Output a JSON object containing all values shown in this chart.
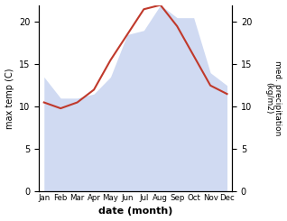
{
  "months": [
    "Jan",
    "Feb",
    "Mar",
    "Apr",
    "May",
    "Jun",
    "Jul",
    "Aug",
    "Sep",
    "Oct",
    "Nov",
    "Dec"
  ],
  "month_indices": [
    0,
    1,
    2,
    3,
    4,
    5,
    6,
    7,
    8,
    9,
    10,
    11
  ],
  "temp_max": [
    10.5,
    9.8,
    10.5,
    12.0,
    15.5,
    18.5,
    21.5,
    22.0,
    19.5,
    16.0,
    12.5,
    11.5
  ],
  "precipitation": [
    13.5,
    11.0,
    11.0,
    11.5,
    13.5,
    18.5,
    19.0,
    22.0,
    20.5,
    20.5,
    14.0,
    12.5
  ],
  "fill_color": "#c8d4f0",
  "fill_alpha": 0.85,
  "line_color": "#c0392b",
  "line_width": 1.5,
  "left_ylabel": "max temp (C)",
  "right_ylabel": "med. precipitation\n(kg/m2)",
  "xlabel": "date (month)",
  "ylim_left": [
    0,
    22
  ],
  "ylim_right": [
    0,
    22
  ],
  "yticks_left": [
    0,
    5,
    10,
    15,
    20
  ],
  "yticks_right": [
    0,
    5,
    10,
    15,
    20
  ],
  "bg_color": "#ffffff"
}
